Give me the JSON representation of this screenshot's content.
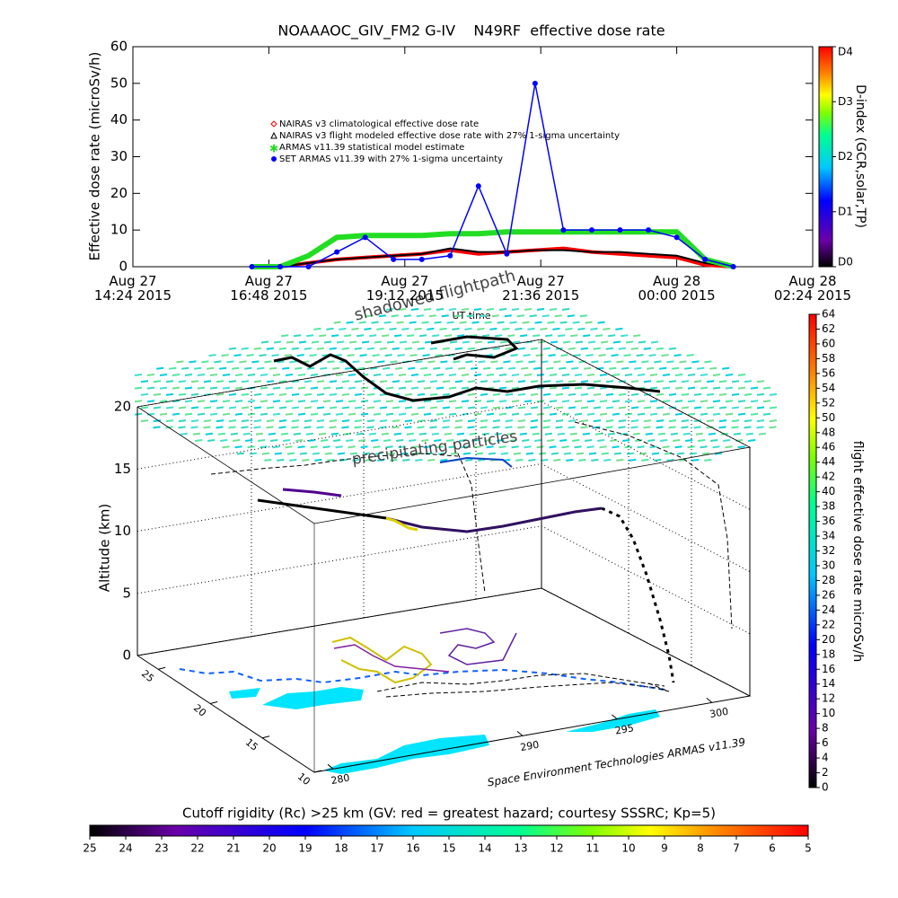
{
  "chart_data": [
    {
      "type": "line",
      "title": "NOAAAOC_GIV_FM2 G-IV    N49RF  effective dose rate",
      "ylabel": "Effective dose rate (microSv/h)",
      "xlabel": "UT time",
      "x": [
        "2015-08-27T16:30",
        "2015-08-27T17:00",
        "2015-08-27T17:30",
        "2015-08-27T18:00",
        "2015-08-27T18:30",
        "2015-08-27T19:00",
        "2015-08-27T19:30",
        "2015-08-27T20:00",
        "2015-08-27T20:30",
        "2015-08-27T21:00",
        "2015-08-27T21:30",
        "2015-08-27T22:00",
        "2015-08-27T22:30",
        "2015-08-27T23:00",
        "2015-08-27T23:30",
        "2015-08-28T00:00",
        "2015-08-28T00:30",
        "2015-08-28T01:00"
      ],
      "series": [
        {
          "name": "NAIRAS v3 climatological effective dose rate",
          "color": "#ff0000",
          "values": [
            0,
            0,
            1,
            2,
            2.5,
            3,
            3.5,
            4.5,
            3.5,
            4,
            4.5,
            5,
            4,
            3.5,
            3,
            2.5,
            0.5,
            0
          ]
        },
        {
          "name": "NAIRAS v3 flight modeled effective dose rate with 27% 1-sigma uncertainty",
          "color": "#000000",
          "values": [
            0,
            0,
            1,
            2,
            2.5,
            3,
            3.5,
            5,
            4,
            4,
            4.5,
            4.5,
            4,
            4,
            3.5,
            3,
            1,
            0
          ]
        },
        {
          "name": "ARMAS v11.39 statistical model estimate",
          "color": "#22dd22",
          "values": [
            0,
            0,
            3,
            8,
            8.5,
            8.5,
            8.5,
            9,
            9,
            9.5,
            9.5,
            9.5,
            9.5,
            9.5,
            9.5,
            9.5,
            2,
            0
          ]
        },
        {
          "name": "SET ARMAS v11.39 with 27% 1-sigma uncertainty",
          "color": "#0000ff",
          "values": [
            0,
            0,
            0,
            4,
            8,
            2,
            2,
            3,
            22,
            3.5,
            50,
            10,
            10,
            10,
            10,
            8,
            2,
            0
          ]
        }
      ],
      "xlim": [
        "2015-08-27T14:24",
        "2015-08-28T02:24"
      ],
      "xticks": [
        {
          "value": "2015-08-27T14:24",
          "label": "Aug 27\n14:24 2015"
        },
        {
          "value": "2015-08-27T16:48",
          "label": "Aug 27\n16:48 2015"
        },
        {
          "value": "2015-08-27T19:12",
          "label": "Aug 27\n19:12 2015"
        },
        {
          "value": "2015-08-27T21:36",
          "label": "Aug 27\n21:36 2015"
        },
        {
          "value": "2015-08-28T00:00",
          "label": "Aug 28\n00:00 2015"
        },
        {
          "value": "2015-08-28T02:24",
          "label": "Aug 28\n02:24 2015"
        }
      ],
      "ylim": [
        0,
        60
      ],
      "yticks": [
        0,
        10,
        20,
        30,
        40,
        50,
        60
      ],
      "colorbar": {
        "label": "D-index (GCR,solar,TP)",
        "lim": [
          0,
          4
        ],
        "ticks": [
          {
            "value": 0,
            "label": "D0"
          },
          {
            "value": 1,
            "label": "D1"
          },
          {
            "value": 2,
            "label": "D2"
          },
          {
            "value": 3,
            "label": "D3"
          },
          {
            "value": 4,
            "label": "D4"
          }
        ]
      }
    },
    {
      "type": "scatter3d",
      "title": "shadowed flightpath",
      "annotation": "precipitating particles",
      "zlabel": "Altitude (km)",
      "zlim": [
        0,
        20
      ],
      "zticks": [
        0,
        5,
        10,
        15,
        20
      ],
      "latlim": [
        10,
        27
      ],
      "latticks": [
        10,
        15,
        20,
        25
      ],
      "lonlim": [
        279,
        302
      ],
      "lonticks": [
        280,
        290,
        295,
        300
      ],
      "credit": "Space Environment Technologies ARMAS v11.39",
      "colorbar": {
        "label": "flight effective dose rate microSv/h",
        "lim": [
          0,
          64
        ],
        "ticks": [
          0,
          2,
          4,
          6,
          8,
          10,
          12,
          14,
          16,
          18,
          20,
          22,
          24,
          26,
          28,
          30,
          32,
          34,
          36,
          38,
          40,
          42,
          44,
          46,
          48,
          50,
          52,
          54,
          56,
          58,
          60,
          62,
          64
        ]
      }
    },
    {
      "type": "colorbar",
      "title": "Cutoff rigidity (Rc) >25 km (GV: red = greatest hazard; courtesy SSSRC; Kp=5)",
      "xlim": [
        25,
        5
      ],
      "xticks": [
        25,
        24,
        23,
        22,
        21,
        20,
        19,
        18,
        17,
        16,
        15,
        14,
        13,
        12,
        11,
        10,
        9,
        8,
        7,
        6,
        5
      ]
    }
  ]
}
